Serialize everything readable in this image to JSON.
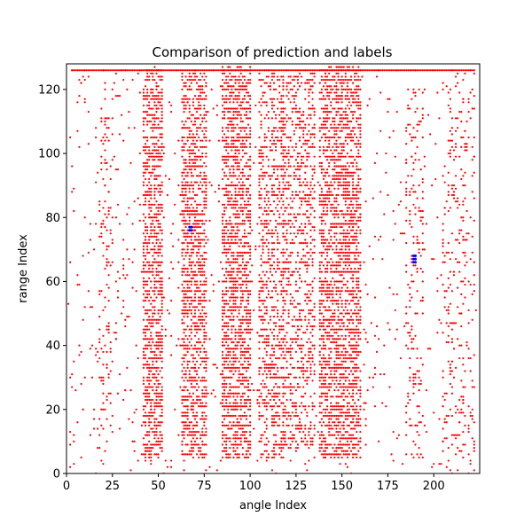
{
  "chart_data": {
    "type": "scatter",
    "title": "Comparison of prediction and labels",
    "xlabel": "angle Index",
    "ylabel": "range Index",
    "xlim": [
      0,
      225
    ],
    "ylim": [
      0,
      128
    ],
    "xticks": [
      0,
      25,
      50,
      75,
      100,
      125,
      150,
      175,
      200
    ],
    "yticks": [
      0,
      20,
      40,
      60,
      80,
      100,
      120
    ],
    "grid": false,
    "series": [
      {
        "color": "#ff0000",
        "marker_radius_data": 0.45,
        "description_segments": [
          {
            "x": [
              3,
              222
            ],
            "y": [
              126,
              126
            ],
            "density": "full-line"
          },
          {
            "x": [
              42,
              52
            ],
            "y": [
              5,
              126
            ],
            "density": "dense"
          },
          {
            "x": [
              63,
              76
            ],
            "y": [
              5,
              125
            ],
            "density": "dense"
          },
          {
            "x": [
              85,
              100
            ],
            "y": [
              5,
              127
            ],
            "density": "dense"
          },
          {
            "x": [
              105,
              118
            ],
            "y": [
              5,
              125
            ],
            "density": "medium"
          },
          {
            "x": [
              118,
              135
            ],
            "y": [
              8,
              125
            ],
            "density": "medium"
          },
          {
            "x": [
              138,
              160
            ],
            "y": [
              5,
              127
            ],
            "density": "dense"
          },
          {
            "x": [
              18,
              25
            ],
            "y": [
              8,
              120
            ],
            "density": "sparse"
          },
          {
            "x": [
              185,
              194
            ],
            "y": [
              5,
              120
            ],
            "density": "sparse"
          },
          {
            "x": [
              205,
              222
            ],
            "y": [
              0,
              120
            ],
            "density": "sparse"
          }
        ],
        "points": [
          [
            3,
            126
          ],
          [
            10,
            126
          ],
          [
            20,
            126
          ],
          [
            30,
            126
          ],
          [
            40,
            126
          ],
          [
            50,
            126
          ],
          [
            60,
            126
          ],
          [
            70,
            126
          ],
          [
            80,
            126
          ],
          [
            90,
            126
          ],
          [
            100,
            126
          ],
          [
            110,
            126
          ],
          [
            120,
            126
          ],
          [
            130,
            126
          ],
          [
            140,
            126
          ],
          [
            150,
            126
          ],
          [
            160,
            126
          ],
          [
            170,
            126
          ],
          [
            180,
            126
          ],
          [
            190,
            126
          ],
          [
            200,
            126
          ],
          [
            210,
            126
          ],
          [
            220,
            126
          ],
          [
            46,
            120
          ],
          [
            46,
            110
          ],
          [
            46,
            100
          ],
          [
            46,
            80
          ],
          [
            46,
            60
          ],
          [
            46,
            40
          ],
          [
            46,
            20
          ],
          [
            46,
            8
          ],
          [
            68,
            110
          ],
          [
            68,
            95
          ],
          [
            68,
            70
          ],
          [
            68,
            50
          ],
          [
            68,
            30
          ],
          [
            68,
            10
          ],
          [
            92,
            120
          ],
          [
            92,
            100
          ],
          [
            92,
            80
          ],
          [
            92,
            60
          ],
          [
            92,
            40
          ],
          [
            92,
            20
          ],
          [
            92,
            6
          ],
          [
            112,
            115
          ],
          [
            112,
            90
          ],
          [
            112,
            65
          ],
          [
            112,
            40
          ],
          [
            112,
            20
          ],
          [
            128,
            110
          ],
          [
            128,
            85
          ],
          [
            128,
            60
          ],
          [
            128,
            35
          ],
          [
            128,
            15
          ],
          [
            150,
            122
          ],
          [
            150,
            100
          ],
          [
            150,
            75
          ],
          [
            150,
            50
          ],
          [
            150,
            25
          ],
          [
            150,
            5
          ],
          [
            21,
            110
          ],
          [
            21,
            90
          ],
          [
            21,
            40
          ],
          [
            21,
            20
          ],
          [
            189,
            120
          ],
          [
            189,
            90
          ],
          [
            189,
            60
          ],
          [
            189,
            30
          ],
          [
            189,
            10
          ],
          [
            215,
            110
          ],
          [
            215,
            80
          ],
          [
            215,
            50
          ],
          [
            215,
            20
          ],
          [
            222,
            1
          ]
        ]
      },
      {
        "color": "#0000ff",
        "marker_radius_data": 0.45,
        "points": [
          [
            67,
            77
          ],
          [
            68,
            77
          ],
          [
            67,
            76
          ],
          [
            68,
            76
          ],
          [
            189,
            68
          ],
          [
            190,
            68
          ],
          [
            189,
            67
          ],
          [
            190,
            67
          ],
          [
            189,
            66
          ],
          [
            190,
            66
          ]
        ]
      }
    ]
  }
}
